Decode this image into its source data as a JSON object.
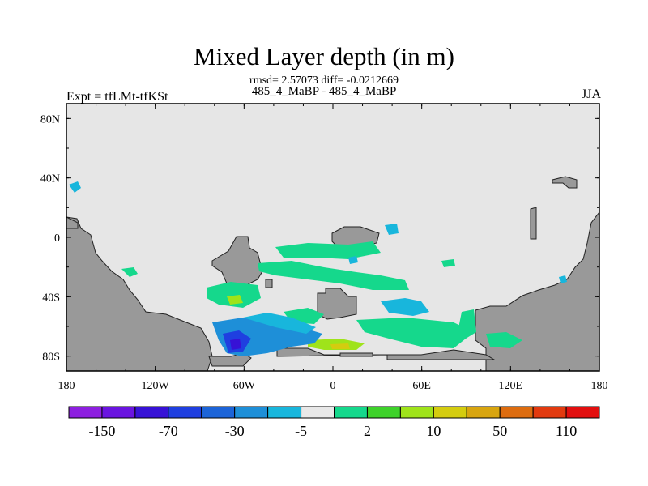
{
  "title": "Mixed Layer depth (in m)",
  "stats": "rmsd= 2.57073 diff= -0.0212669",
  "subtitle": "485_4_MaBP - 485_4_MaBP",
  "left_label": "Expt = tfLMt-tfKSt",
  "right_label": "JJA",
  "colors": {
    "ocean_background": "#e6e6e6",
    "land": "#999999",
    "frame": "#000000"
  },
  "chart_data": {
    "type": "heatmap",
    "projection": "cylindrical equidistant",
    "lon_range": [
      -180,
      180
    ],
    "lat_range": [
      -90,
      90
    ],
    "x_ticks": [
      "180",
      "120W",
      "60W",
      "0",
      "60E",
      "120E",
      "180"
    ],
    "y_ticks": [
      "80N",
      "40N",
      "0",
      "40S",
      "80S"
    ],
    "y_tick_values": [
      80,
      40,
      0,
      -40,
      -80
    ],
    "colorbar": {
      "colors": [
        "#8d1fe0",
        "#6a14e0",
        "#3712d6",
        "#1f3fe0",
        "#1c64d8",
        "#1e8fd8",
        "#18b6dc",
        "#e8e8e8",
        "#15d88c",
        "#3ed22a",
        "#9fe31a",
        "#d4cc0f",
        "#d8a50f",
        "#dd6c0f",
        "#e23a0f",
        "#e20f0f"
      ],
      "labels": [
        "-150",
        "-70",
        "-30",
        "-5",
        "2",
        "10",
        "50",
        "110"
      ]
    }
  }
}
